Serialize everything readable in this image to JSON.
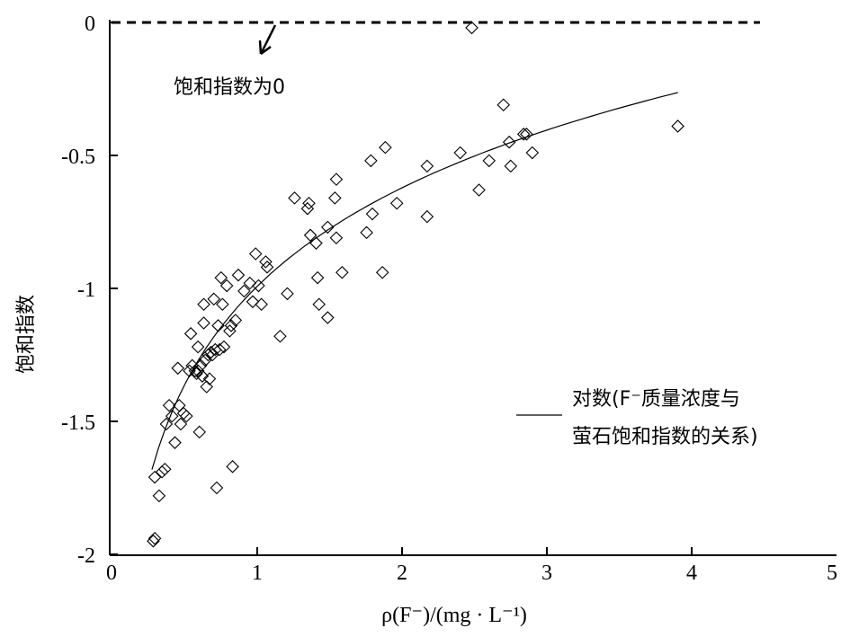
{
  "chart_data": {
    "type": "scatter",
    "title": "",
    "xlabel": "ρ(F⁻)/(mg · L⁻¹)",
    "ylabel": "饱和指数",
    "xlim": [
      0,
      5
    ],
    "ylim": [
      -2,
      0
    ],
    "xticks": [
      "0",
      "1",
      "2",
      "3",
      "4",
      "5"
    ],
    "yticks": [
      "0",
      "-0.5",
      "-1",
      "-1.5",
      "-2"
    ],
    "grid": false,
    "legend": {
      "position": "right-middle",
      "line1": "对数(F⁻质量浓度与",
      "line2": "萤石饱和指数的关系)"
    },
    "annotation": {
      "text": "饱和指数为0",
      "reference_y": 0
    },
    "reference_line": {
      "y": 0,
      "x_range": [
        0,
        4.5
      ],
      "style": "dashed"
    },
    "fit": {
      "type": "logarithmic",
      "a": -0.9982,
      "b": 0.5368,
      "x_range": [
        0.28,
        3.93
      ]
    },
    "points": [
      [
        0.29,
        -1.95
      ],
      [
        0.3,
        -1.94
      ],
      [
        0.3,
        -1.71
      ],
      [
        0.33,
        -1.78
      ],
      [
        0.35,
        -1.69
      ],
      [
        0.37,
        -1.68
      ],
      [
        0.38,
        -1.51
      ],
      [
        0.4,
        -1.44
      ],
      [
        0.42,
        -1.48
      ],
      [
        0.44,
        -1.58
      ],
      [
        0.46,
        -1.3
      ],
      [
        0.47,
        -1.44
      ],
      [
        0.48,
        -1.51
      ],
      [
        0.5,
        -1.47
      ],
      [
        0.52,
        -1.48
      ],
      [
        0.54,
        -1.31
      ],
      [
        0.55,
        -1.17
      ],
      [
        0.56,
        -1.29
      ],
      [
        0.58,
        -1.31
      ],
      [
        0.59,
        -1.32
      ],
      [
        0.6,
        -1.31
      ],
      [
        0.6,
        -1.22
      ],
      [
        0.61,
        -1.54
      ],
      [
        0.62,
        -1.29
      ],
      [
        0.63,
        -1.33
      ],
      [
        0.64,
        -1.06
      ],
      [
        0.64,
        -1.13
      ],
      [
        0.65,
        -1.27
      ],
      [
        0.66,
        -1.37
      ],
      [
        0.67,
        -1.25
      ],
      [
        0.68,
        -1.34
      ],
      [
        0.69,
        -1.24
      ],
      [
        0.7,
        -1.25
      ],
      [
        0.71,
        -1.04
      ],
      [
        0.72,
        -1.23
      ],
      [
        0.73,
        -1.75
      ],
      [
        0.74,
        -1.14
      ],
      [
        0.75,
        -1.23
      ],
      [
        0.76,
        -0.96
      ],
      [
        0.77,
        -1.06
      ],
      [
        0.78,
        -1.22
      ],
      [
        0.8,
        -0.99
      ],
      [
        0.82,
        -1.16
      ],
      [
        0.83,
        -1.14
      ],
      [
        0.84,
        -1.67
      ],
      [
        0.86,
        -1.12
      ],
      [
        0.88,
        -0.95
      ],
      [
        0.92,
        -1.01
      ],
      [
        0.96,
        -0.98
      ],
      [
        0.98,
        -1.05
      ],
      [
        1.0,
        -0.87
      ],
      [
        1.02,
        -0.99
      ],
      [
        1.04,
        -1.06
      ],
      [
        1.07,
        -0.9
      ],
      [
        1.08,
        -0.92
      ],
      [
        1.17,
        -1.18
      ],
      [
        1.22,
        -1.02
      ],
      [
        1.27,
        -0.66
      ],
      [
        1.36,
        -0.7
      ],
      [
        1.37,
        -0.68
      ],
      [
        1.38,
        -0.8
      ],
      [
        1.42,
        -0.83
      ],
      [
        1.43,
        -0.96
      ],
      [
        1.44,
        -1.06
      ],
      [
        1.5,
        -0.77
      ],
      [
        1.5,
        -1.11
      ],
      [
        1.55,
        -0.66
      ],
      [
        1.56,
        -0.59
      ],
      [
        1.56,
        -0.81
      ],
      [
        1.6,
        -0.94
      ],
      [
        1.77,
        -0.79
      ],
      [
        1.8,
        -0.52
      ],
      [
        1.81,
        -0.72
      ],
      [
        1.88,
        -0.94
      ],
      [
        1.9,
        -0.47
      ],
      [
        1.98,
        -0.68
      ],
      [
        2.19,
        -0.54
      ],
      [
        2.19,
        -0.73
      ],
      [
        2.42,
        -0.49
      ],
      [
        2.5,
        -0.02
      ],
      [
        2.55,
        -0.63
      ],
      [
        2.62,
        -0.52
      ],
      [
        2.72,
        -0.31
      ],
      [
        2.76,
        -0.45
      ],
      [
        2.77,
        -0.54
      ],
      [
        2.86,
        -0.42
      ],
      [
        2.88,
        -0.42
      ],
      [
        2.92,
        -0.49
      ],
      [
        3.93,
        -0.39
      ]
    ]
  }
}
